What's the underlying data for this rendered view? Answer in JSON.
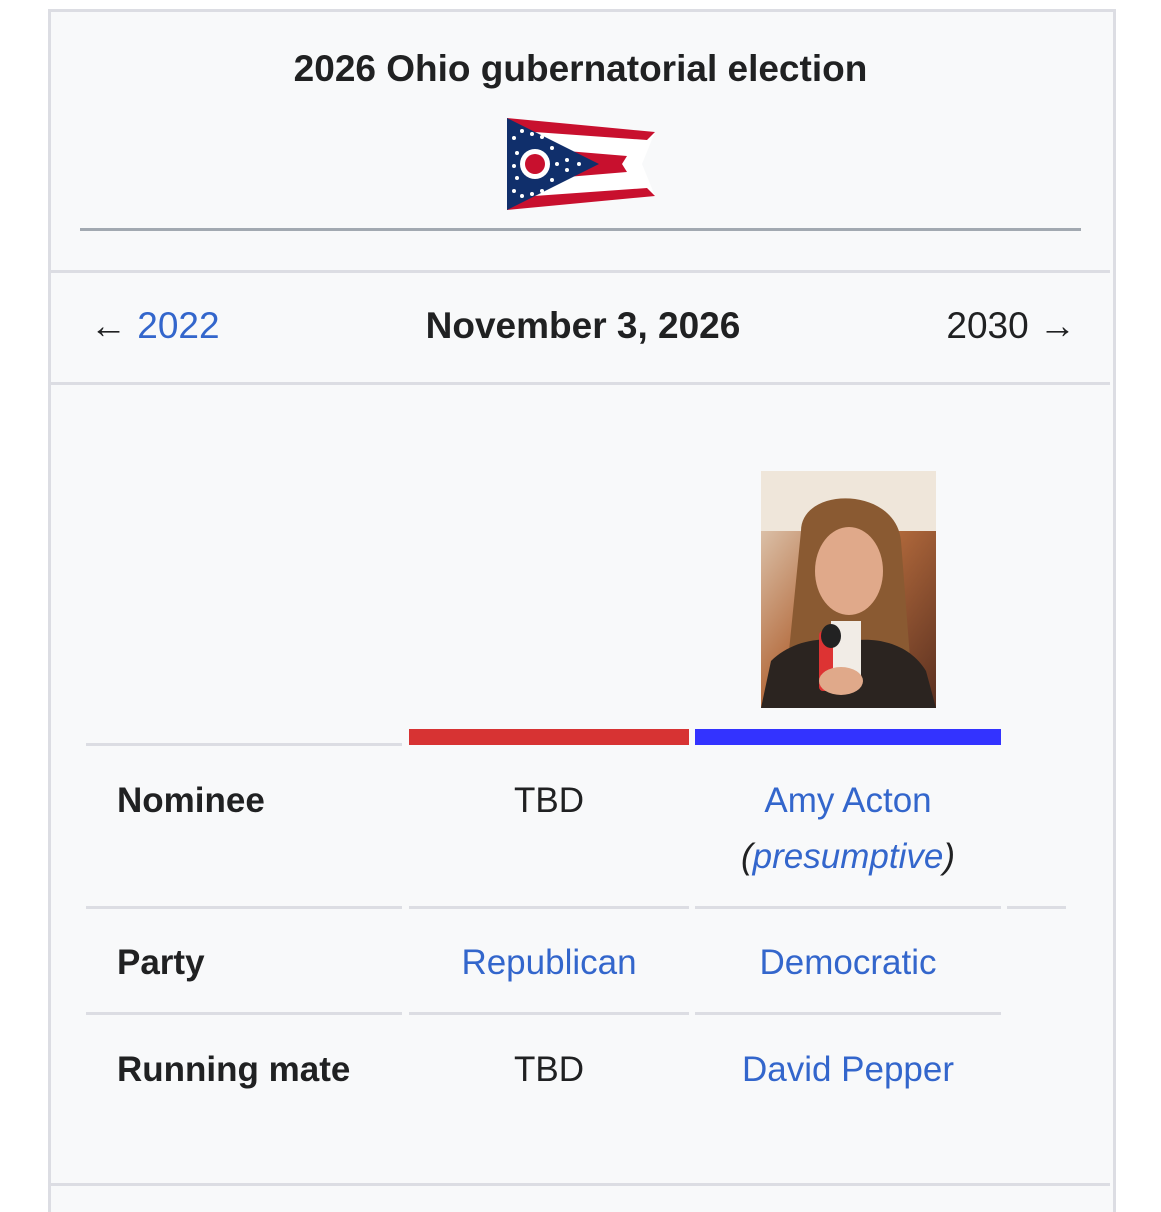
{
  "infobox": {
    "title": "2026 Ohio gubernatorial election",
    "flag_icon": "ohio-flag",
    "nav": {
      "prev_arrow": "←",
      "prev_year": "2022",
      "date": "November 3, 2026",
      "next_year": "2030",
      "next_arrow": "→"
    },
    "candidates": [
      {
        "party_color": "#d73333",
        "nominee": "TBD",
        "party": "Republican",
        "running_mate": "TBD"
      },
      {
        "party_color": "#3333ff",
        "nominee": "Amy Acton",
        "nominee_note_open": "(",
        "nominee_note": "presumptive",
        "nominee_note_close": ")",
        "party": "Democratic",
        "running_mate": "David Pepper"
      }
    ],
    "row_labels": {
      "nominee": "Nominee",
      "party": "Party",
      "running_mate": "Running mate"
    },
    "colors": {
      "link": "#3366cc",
      "background": "#f8f9fa"
    }
  }
}
